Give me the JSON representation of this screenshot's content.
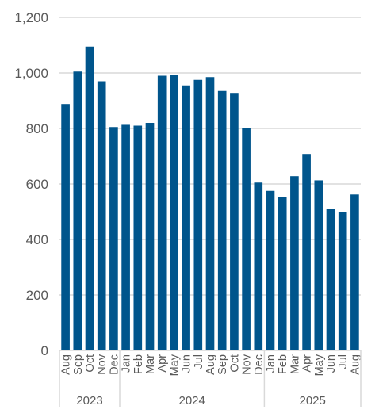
{
  "chart_data": {
    "type": "bar",
    "categories": [
      "Aug",
      "Sep",
      "Oct",
      "Nov",
      "Dec",
      "Jan",
      "Feb",
      "Mar",
      "Apr",
      "May",
      "Jun",
      "Jul",
      "Aug",
      "Sep",
      "Oct",
      "Nov",
      "Dec",
      "Jan",
      "Feb",
      "Mar",
      "Apr",
      "May",
      "Jun",
      "Jul",
      "Aug"
    ],
    "years": [
      {
        "label": "2023",
        "start": 0,
        "end": 4
      },
      {
        "label": "2024",
        "start": 5,
        "end": 16
      },
      {
        "label": "2025",
        "start": 17,
        "end": 24
      }
    ],
    "values": [
      888,
      1005,
      1095,
      970,
      805,
      813,
      810,
      820,
      990,
      993,
      955,
      975,
      985,
      935,
      928,
      800,
      605,
      575,
      553,
      628,
      708,
      613,
      510,
      500,
      562
    ],
    "ylim": [
      0,
      1200
    ],
    "yticks": [
      0,
      200,
      400,
      600,
      800,
      1000,
      1200
    ],
    "ytick_labels": [
      "0",
      "200",
      "400",
      "600",
      "800",
      "1,000",
      "1,200"
    ],
    "grid": true,
    "bar_color": "#00558c",
    "grid_color": "#d9d9d9",
    "title": "",
    "xlabel": "",
    "ylabel": ""
  }
}
